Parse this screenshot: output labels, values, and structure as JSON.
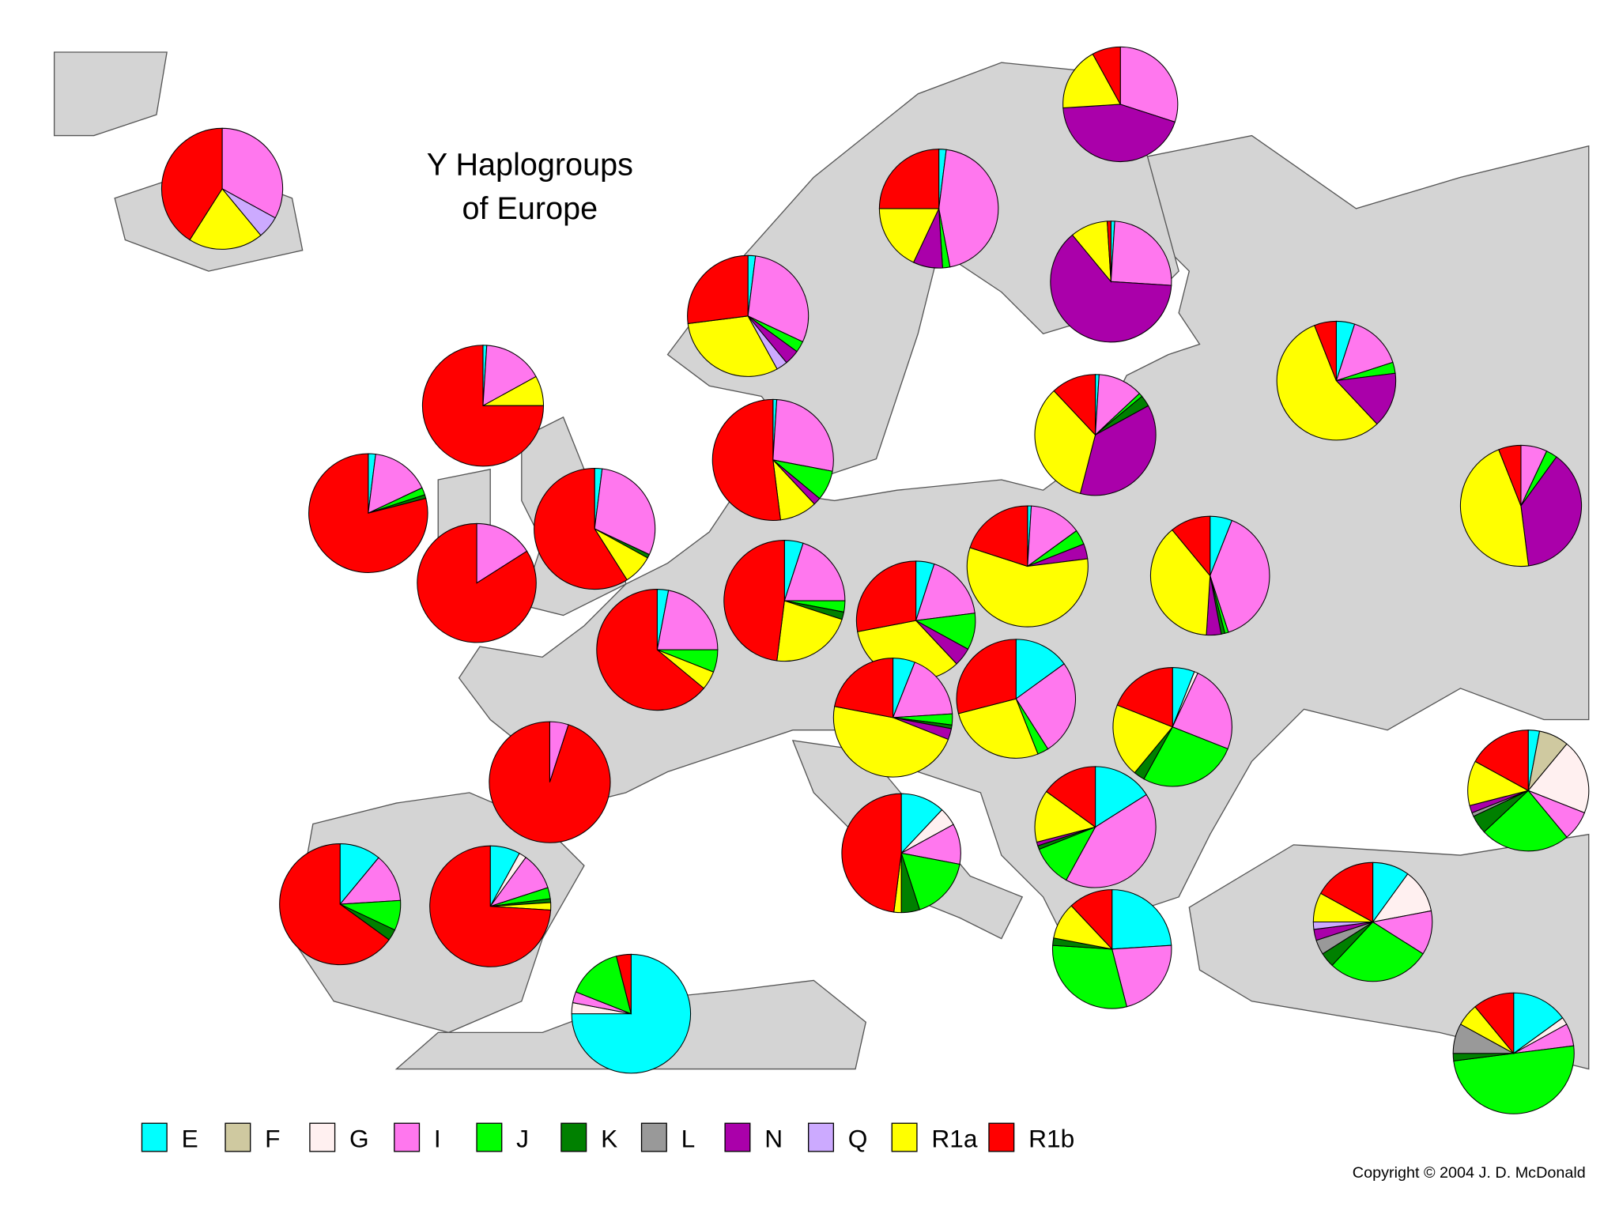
{
  "chart_data": {
    "type": "pie-map",
    "title_lines": [
      "Y Haplogroups",
      "of Europe"
    ],
    "copyright": "Copyright © 2004  J. D. McDonald",
    "series": [
      {
        "name": "E",
        "color": "#00ffff"
      },
      {
        "name": "F",
        "color": "#cfc9a0"
      },
      {
        "name": "G",
        "color": "#fff0f0"
      },
      {
        "name": "I",
        "color": "#ff77ee"
      },
      {
        "name": "J",
        "color": "#00ff00"
      },
      {
        "name": "K",
        "color": "#008000"
      },
      {
        "name": "L",
        "color": "#999999"
      },
      {
        "name": "N",
        "color": "#aa00aa"
      },
      {
        "name": "Q",
        "color": "#ccaaff"
      },
      {
        "name": "R1a",
        "color": "#ffff00"
      },
      {
        "name": "R1b",
        "color": "#ff0000"
      }
    ],
    "pies": [
      {
        "values": [
          0,
          0,
          0,
          33,
          0,
          0,
          0,
          0,
          6,
          20,
          41
        ]
      },
      {
        "values": [
          2,
          0,
          0,
          45,
          2,
          0,
          0,
          8,
          0,
          18,
          25
        ]
      },
      {
        "values": [
          0,
          0,
          0,
          30,
          0,
          0,
          0,
          44,
          0,
          18,
          8
        ]
      },
      {
        "values": [
          1,
          0,
          0,
          25,
          0,
          0,
          0,
          63,
          0,
          10,
          1
        ]
      },
      {
        "values": [
          2,
          0,
          0,
          30,
          3,
          0,
          0,
          4,
          3,
          31,
          27
        ]
      },
      {
        "values": [
          1,
          0,
          0,
          16,
          0,
          0,
          0,
          0,
          0,
          8,
          75
        ]
      },
      {
        "values": [
          2,
          0,
          0,
          16,
          2,
          1,
          0,
          0,
          0,
          0,
          79
        ]
      },
      {
        "values": [
          0,
          0,
          0,
          16,
          0,
          0,
          0,
          0,
          0,
          0,
          84
        ]
      },
      {
        "values": [
          2,
          0,
          0,
          30,
          0,
          1,
          0,
          0,
          0,
          8,
          59
        ]
      },
      {
        "values": [
          1,
          0,
          0,
          27,
          8,
          0,
          0,
          2,
          0,
          10,
          52
        ]
      },
      {
        "values": [
          1,
          0,
          0,
          12,
          1,
          3,
          0,
          37,
          0,
          34,
          12
        ]
      },
      {
        "values": [
          5,
          0,
          0,
          15,
          3,
          0,
          0,
          15,
          0,
          56,
          6
        ]
      },
      {
        "values": [
          0,
          0,
          0,
          7,
          3,
          0,
          0,
          38,
          0,
          46,
          6
        ]
      },
      {
        "values": [
          3,
          0,
          0,
          22,
          6,
          0,
          0,
          0,
          0,
          5,
          64
        ]
      },
      {
        "values": [
          5,
          0,
          0,
          20,
          3,
          2,
          0,
          0,
          0,
          22,
          48
        ]
      },
      {
        "values": [
          1,
          0,
          0,
          14,
          4,
          0,
          0,
          4,
          0,
          57,
          20
        ]
      },
      {
        "values": [
          6,
          0,
          0,
          39,
          1,
          1,
          0,
          4,
          0,
          38,
          11
        ]
      },
      {
        "values": [
          5,
          0,
          0,
          18,
          10,
          0,
          0,
          5,
          0,
          34,
          28
        ]
      },
      {
        "values": [
          6,
          0,
          0,
          18,
          3,
          1,
          0,
          3,
          0,
          47,
          22
        ]
      },
      {
        "values": [
          15,
          0,
          0,
          26,
          3,
          0,
          0,
          0,
          0,
          27,
          29
        ]
      },
      {
        "values": [
          6,
          0,
          1,
          24,
          27,
          3,
          0,
          0,
          0,
          20,
          19
        ]
      },
      {
        "values": [
          0,
          0,
          0,
          5,
          0,
          0,
          0,
          0,
          0,
          0,
          95
        ]
      },
      {
        "values": [
          11,
          0,
          0,
          13,
          8,
          3,
          0,
          0,
          0,
          0,
          65
        ]
      },
      {
        "values": [
          8,
          0,
          2,
          10,
          3,
          1,
          0,
          0,
          0,
          2,
          74
        ]
      },
      {
        "values": [
          12,
          0,
          5,
          11,
          17,
          5,
          0,
          0,
          0,
          2,
          48
        ]
      },
      {
        "values": [
          16,
          0,
          0,
          42,
          11,
          1,
          0,
          1,
          0,
          14,
          15
        ]
      },
      {
        "values": [
          24,
          0,
          0,
          22,
          30,
          2,
          0,
          0,
          0,
          10,
          12
        ]
      },
      {
        "values": [
          3,
          8,
          20,
          8,
          24,
          5,
          1,
          2,
          0,
          12,
          17
        ]
      },
      {
        "values": [
          10,
          0,
          12,
          12,
          28,
          4,
          4,
          3,
          2,
          8,
          17
        ]
      },
      {
        "values": [
          15,
          0,
          2,
          6,
          50,
          2,
          8,
          0,
          0,
          6,
          11
        ]
      },
      {
        "values": [
          75,
          0,
          3,
          3,
          15,
          0,
          0,
          0,
          0,
          0,
          4
        ]
      }
    ]
  }
}
